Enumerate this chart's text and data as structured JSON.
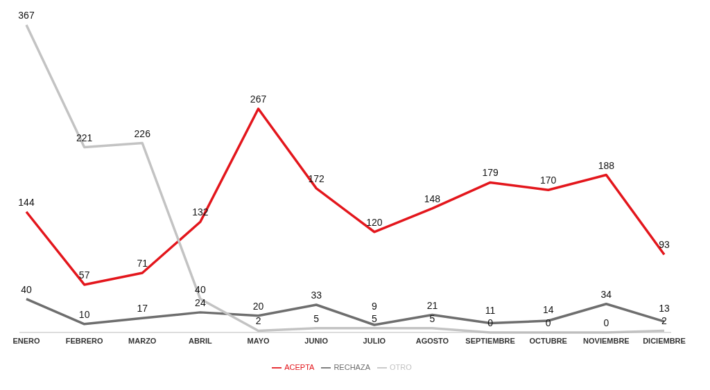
{
  "chart_data": {
    "type": "line",
    "categories": [
      "ENERO",
      "FEBRERO",
      "MARZO",
      "ABRIL",
      "MAYO",
      "JUNIO",
      "JULIO",
      "AGOSTO",
      "SEPTIEMBRE",
      "OCTUBRE",
      "NOVIEMBRE",
      "DICIEMBRE"
    ],
    "series": [
      {
        "name": "ACEPTA",
        "color": "#e3161c",
        "values": [
          144,
          57,
          71,
          132,
          267,
          172,
          120,
          148,
          179,
          170,
          188,
          93
        ]
      },
      {
        "name": "RECHAZA",
        "color": "#6e6e6e",
        "values": [
          40,
          10,
          17,
          24,
          20,
          33,
          9,
          21,
          11,
          14,
          34,
          13
        ]
      },
      {
        "name": "OTRO",
        "color": "#c3c3c3",
        "values": [
          367,
          221,
          226,
          40,
          2,
          5,
          5,
          5,
          0,
          0,
          0,
          2
        ]
      }
    ],
    "data_labels": true,
    "legend": "bottom",
    "grid": false,
    "marker": "none",
    "line_style": "solid"
  }
}
